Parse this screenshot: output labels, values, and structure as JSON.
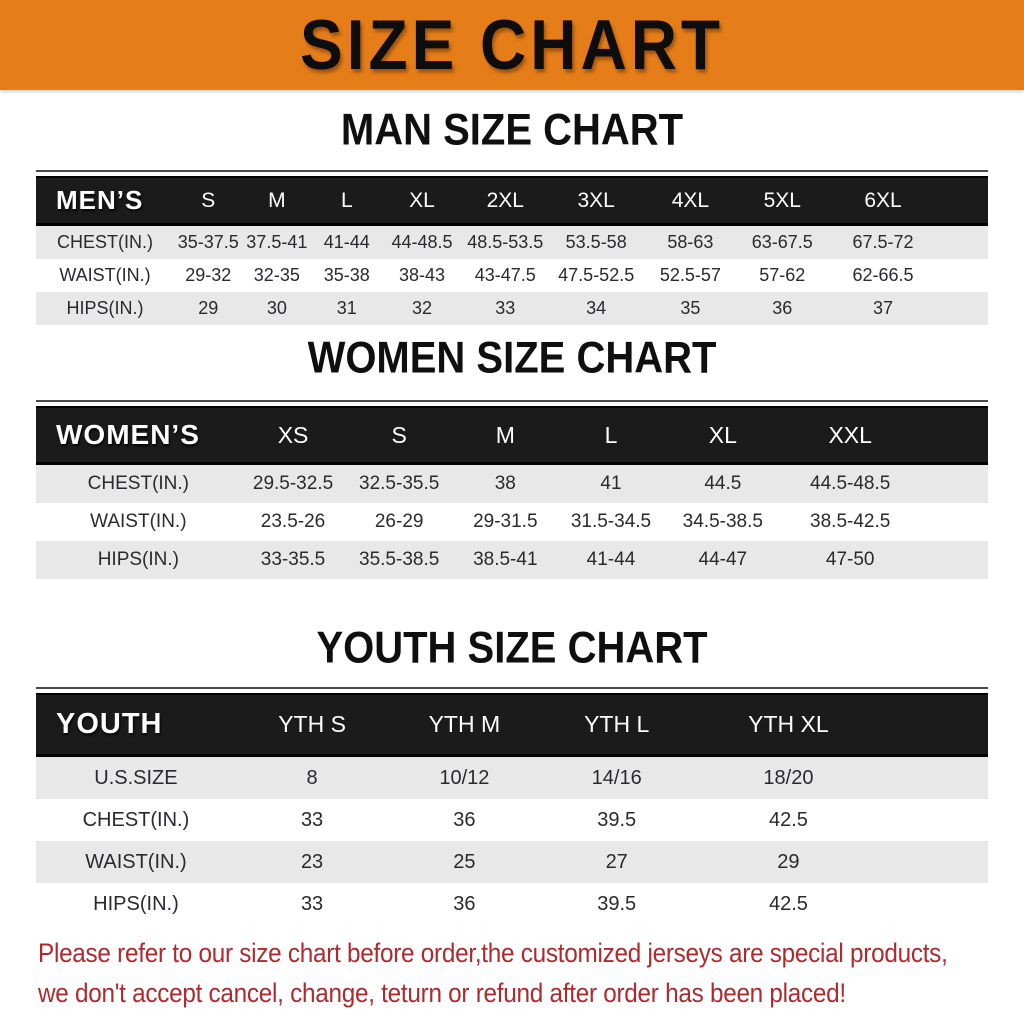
{
  "banner": {
    "title": "SIZE CHART"
  },
  "man_section": {
    "heading": "MAN SIZE CHART",
    "table": {
      "header": [
        "MEN’S",
        "S",
        "M",
        "L",
        "XL",
        "2XL",
        "3XL",
        "4XL",
        "5XL",
        "6XL"
      ],
      "col_widths": [
        "14.5%",
        "7.2%",
        "7.2%",
        "7.5%",
        "8.3%",
        "9.2%",
        "9.9%",
        "9.9%",
        "9.4%",
        "16.9%"
      ],
      "rows": [
        [
          "CHEST(IN.)",
          "35-37.5",
          "37.5-41",
          "41-44",
          "44-48.5",
          "48.5-53.5",
          "53.5-58",
          "58-63",
          "63-67.5",
          "67.5-72"
        ],
        [
          "WAIST(IN.)",
          "29-32",
          "32-35",
          "35-38",
          "38-43",
          "43-47.5",
          "47.5-52.5",
          "52.5-57",
          "57-62",
          "62-66.5"
        ],
        [
          "HIPS(IN.)",
          "29",
          "30",
          "31",
          "32",
          "33",
          "34",
          "35",
          "36",
          "37"
        ]
      ]
    }
  },
  "women_section": {
    "heading": "WOMEN SIZE CHART",
    "table": {
      "header": [
        "WOMEN’S",
        "XS",
        "S",
        "M",
        "L",
        "XL",
        "XXL"
      ],
      "col_widths": [
        "21.5%",
        "11%",
        "11.3%",
        "11%",
        "11.2%",
        "12.3%",
        "21.7%"
      ],
      "rows": [
        [
          "CHEST(IN.)",
          "29.5-32.5",
          "32.5-35.5",
          "38",
          "41",
          "44.5",
          "44.5-48.5"
        ],
        [
          "WAIST(IN.)",
          "23.5-26",
          "26-29",
          "29-31.5",
          "31.5-34.5",
          "34.5-38.5",
          "38.5-42.5"
        ],
        [
          "HIPS(IN.)",
          "33-35.5",
          "35.5-38.5",
          "38.5-41",
          "41-44",
          "44-47",
          "47-50"
        ]
      ]
    }
  },
  "youth_section": {
    "heading": "YOUTH SIZE CHART",
    "table": {
      "header": [
        "YOUTH",
        "YTH S",
        "YTH M",
        "YTH L",
        "YTH XL"
      ],
      "col_widths": [
        "21%",
        "16%",
        "16%",
        "16%",
        "31%"
      ],
      "rows": [
        [
          "U.S.SIZE",
          "8",
          "10/12",
          "14/16",
          "18/20"
        ],
        [
          "CHEST(IN.)",
          "33",
          "36",
          "39.5",
          "42.5"
        ],
        [
          "WAIST(IN.)",
          "23",
          "25",
          "27",
          "29"
        ],
        [
          "HIPS(IN.)",
          "33",
          "36",
          "39.5",
          "42.5"
        ]
      ]
    }
  },
  "footer": {
    "lines": [
      "Please refer to our size chart before order,the customized jerseys are special products,",
      "we don't accept cancel, change, teturn or refund after order has been placed!"
    ],
    "color": "#ad2b2e"
  },
  "colors": {
    "banner_bg": "#e57e18",
    "banner_text": "#0d0d0d",
    "header_row_bg": "#1b1b1b",
    "header_row_text": "#ffffff",
    "alt_row_bg": "#e8e8e8",
    "row_text": "#2a2a2e"
  }
}
